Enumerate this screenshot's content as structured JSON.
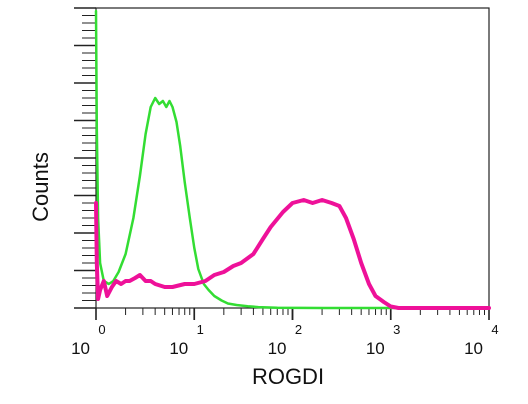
{
  "chart_data": {
    "type": "line",
    "title": "",
    "xlabel": "ROGDI",
    "ylabel": "Counts",
    "x_scale": "log",
    "xlim": [
      1,
      10000
    ],
    "ylim": [
      0,
      100
    ],
    "x_tick_labels": [
      {
        "base": "10",
        "exp": "0",
        "value": 1
      },
      {
        "base": "10",
        "exp": "1",
        "value": 10
      },
      {
        "base": "10",
        "exp": "2",
        "value": 100
      },
      {
        "base": "10",
        "exp": "3",
        "value": 1000
      },
      {
        "base": "10",
        "exp": "4",
        "value": 10000
      }
    ],
    "grid": false,
    "legend": "none",
    "series": [
      {
        "color": "#33dd33",
        "stroke_width": 2.5,
        "x": [
          1,
          1.02,
          1.05,
          1.1,
          1.2,
          1.35,
          1.5,
          1.7,
          2.0,
          2.4,
          2.8,
          3.2,
          3.6,
          4.0,
          4.4,
          4.8,
          5.2,
          5.6,
          6.0,
          6.6,
          7.2,
          8.0,
          9.0,
          10.0,
          11.0,
          12.5,
          14.0,
          16.0,
          19.0,
          22.0,
          27.0,
          35.0,
          45.0,
          70.0,
          200.0,
          800.0,
          1500.0,
          10000.0
        ],
        "y": [
          99,
          60,
          30,
          15,
          9,
          8,
          9,
          12,
          18,
          30,
          44,
          58,
          67,
          70,
          68,
          69,
          67,
          69,
          67,
          62,
          54,
          42,
          30,
          20,
          13,
          8,
          6,
          4,
          2.5,
          1.5,
          1,
          0.6,
          0.3,
          0.1,
          0,
          0,
          0,
          0
        ]
      },
      {
        "color": "#ee1199",
        "stroke_width": 4,
        "x": [
          1,
          1.02,
          1.05,
          1.1,
          1.2,
          1.3,
          1.45,
          1.6,
          1.8,
          2.0,
          2.2,
          2.5,
          2.8,
          3.2,
          3.6,
          4.0,
          5.0,
          6.0,
          8.0,
          10.0,
          13.0,
          16.0,
          20.0,
          25.0,
          30.0,
          40.0,
          50.0,
          60.0,
          80.0,
          100.0,
          130.0,
          160.0,
          200.0,
          250.0,
          300.0,
          350.0,
          420.0,
          500.0,
          600.0,
          700.0,
          850.0,
          1000.0,
          1200.0,
          1600.0,
          2500.0,
          5000.0,
          10000.0
        ],
        "y": [
          35,
          15,
          3,
          6,
          9,
          4,
          7,
          9,
          8,
          9,
          9,
          10,
          11,
          9,
          9,
          8,
          7,
          7,
          8,
          8,
          9,
          11,
          12,
          14,
          15,
          18,
          23,
          27,
          32,
          35,
          36,
          35,
          36,
          35,
          34,
          30,
          23,
          15,
          8,
          4,
          2,
          0.5,
          0,
          0,
          0,
          0,
          0
        ]
      }
    ]
  }
}
